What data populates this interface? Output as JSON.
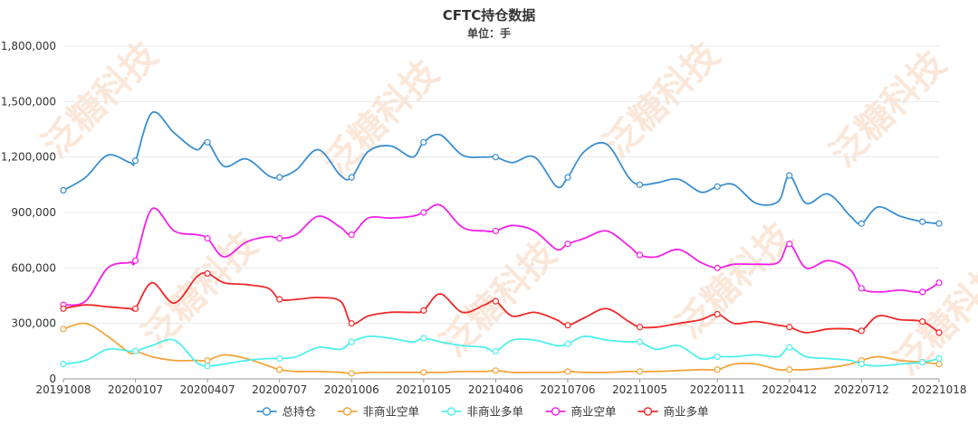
{
  "watermark": "泛糖科技",
  "chart_data": {
    "type": "line",
    "title": "CFTC持仓数据",
    "subtitle": "单位：手",
    "xlabel": "",
    "ylabel": "",
    "ylim": [
      0,
      1800000
    ],
    "yticks": [
      0,
      300000,
      600000,
      900000,
      1200000,
      1500000,
      1800000
    ],
    "ytick_labels": [
      "0",
      "300,000",
      "600,000",
      "900,000",
      "1,200,000",
      "1,500,000",
      "1,800,000"
    ],
    "x_start": "20191008",
    "x_end": "20221018",
    "xtick_labels": [
      "20191008",
      "20200107",
      "20200407",
      "20200707",
      "20201006",
      "20210105",
      "20210406",
      "20210706",
      "20211005",
      "20220111",
      "20220412",
      "20220712",
      "20221018"
    ],
    "grid": true,
    "legend_position": "bottom",
    "x": [
      "20191008",
      "20191105",
      "20191203",
      "20191231",
      "20200107",
      "20200128",
      "20200225",
      "20200324",
      "20200407",
      "20200428",
      "20200526",
      "20200623",
      "20200707",
      "20200728",
      "20200825",
      "20200922",
      "20201006",
      "20201027",
      "20201124",
      "20201222",
      "20210105",
      "20210126",
      "20210223",
      "20210323",
      "20210406",
      "20210427",
      "20210525",
      "20210622",
      "20210706",
      "20210727",
      "20210824",
      "20210921",
      "20211005",
      "20211026",
      "20211123",
      "20211221",
      "20220111",
      "20220201",
      "20220301",
      "20220329",
      "20220412",
      "20220503",
      "20220531",
      "20220628",
      "20220712",
      "20220802",
      "20220830",
      "20220927",
      "20221018"
    ],
    "series": [
      {
        "name": "总持仓",
        "color": "#3b8fd0",
        "values": [
          1020000,
          1090000,
          1210000,
          1170000,
          1180000,
          1440000,
          1330000,
          1240000,
          1280000,
          1150000,
          1190000,
          1100000,
          1090000,
          1130000,
          1240000,
          1100000,
          1090000,
          1230000,
          1260000,
          1200000,
          1280000,
          1320000,
          1210000,
          1200000,
          1200000,
          1170000,
          1200000,
          1040000,
          1090000,
          1230000,
          1270000,
          1090000,
          1050000,
          1060000,
          1080000,
          1010000,
          1040000,
          1050000,
          950000,
          960000,
          1100000,
          950000,
          1000000,
          880000,
          840000,
          930000,
          880000,
          850000,
          840000
        ]
      },
      {
        "name": "非商业空单",
        "color": "#f3a43b",
        "values": [
          270000,
          300000,
          230000,
          140000,
          150000,
          120000,
          100000,
          100000,
          100000,
          130000,
          110000,
          70000,
          50000,
          40000,
          40000,
          35000,
          30000,
          35000,
          35000,
          35000,
          35000,
          35000,
          40000,
          40000,
          45000,
          35000,
          35000,
          35000,
          40000,
          35000,
          35000,
          40000,
          40000,
          40000,
          45000,
          50000,
          50000,
          80000,
          80000,
          50000,
          50000,
          50000,
          60000,
          80000,
          100000,
          120000,
          100000,
          90000,
          80000
        ]
      },
      {
        "name": "非商业多单",
        "color": "#4df0ec",
        "values": [
          80000,
          100000,
          160000,
          150000,
          150000,
          180000,
          210000,
          90000,
          70000,
          80000,
          100000,
          110000,
          110000,
          120000,
          170000,
          160000,
          200000,
          230000,
          220000,
          200000,
          220000,
          200000,
          180000,
          170000,
          150000,
          210000,
          210000,
          180000,
          190000,
          230000,
          210000,
          200000,
          200000,
          160000,
          180000,
          110000,
          120000,
          120000,
          130000,
          120000,
          170000,
          120000,
          110000,
          100000,
          80000,
          70000,
          80000,
          90000,
          110000
        ]
      },
      {
        "name": "商业空单",
        "color": "#f222e8",
        "values": [
          400000,
          420000,
          600000,
          630000,
          640000,
          920000,
          800000,
          780000,
          760000,
          660000,
          740000,
          770000,
          760000,
          780000,
          880000,
          820000,
          780000,
          870000,
          870000,
          880000,
          900000,
          940000,
          820000,
          800000,
          800000,
          830000,
          800000,
          700000,
          730000,
          760000,
          800000,
          720000,
          670000,
          660000,
          700000,
          630000,
          600000,
          620000,
          620000,
          630000,
          730000,
          600000,
          640000,
          590000,
          490000,
          470000,
          480000,
          470000,
          520000
        ]
      },
      {
        "name": "商业多单",
        "color": "#f02a2a",
        "values": [
          380000,
          400000,
          390000,
          380000,
          380000,
          520000,
          410000,
          550000,
          570000,
          520000,
          510000,
          490000,
          430000,
          430000,
          440000,
          420000,
          300000,
          340000,
          360000,
          360000,
          370000,
          460000,
          360000,
          400000,
          420000,
          340000,
          360000,
          320000,
          290000,
          330000,
          380000,
          310000,
          280000,
          280000,
          300000,
          320000,
          350000,
          300000,
          310000,
          290000,
          280000,
          250000,
          270000,
          270000,
          260000,
          340000,
          320000,
          310000,
          250000
        ]
      }
    ]
  }
}
